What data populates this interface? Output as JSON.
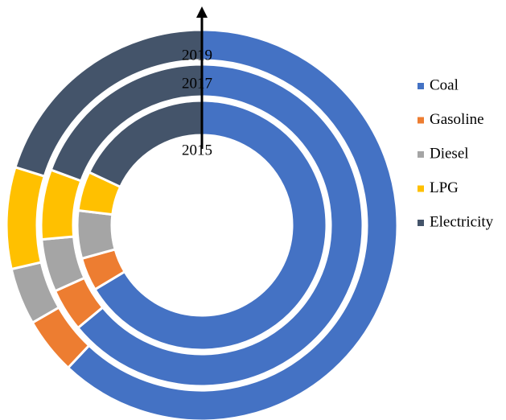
{
  "chart_data": {
    "type": "multi-donut",
    "categories": [
      "Coal",
      "Gasoline",
      "Diesel",
      "LPG",
      "Electricity"
    ],
    "colors": [
      "#4472c4",
      "#ed7d31",
      "#a5a5a5",
      "#ffc000",
      "#44546a"
    ],
    "series": [
      {
        "name": "2015",
        "values": [
          66.4,
          4.3,
          6.2,
          5.1,
          18.0
        ]
      },
      {
        "name": "2017",
        "values": [
          64.0,
          4.3,
          5.3,
          7.0,
          19.4
        ]
      },
      {
        "name": "2019",
        "values": [
          62.0,
          4.7,
          4.7,
          8.4,
          20.2
        ]
      }
    ],
    "legend": "right"
  }
}
